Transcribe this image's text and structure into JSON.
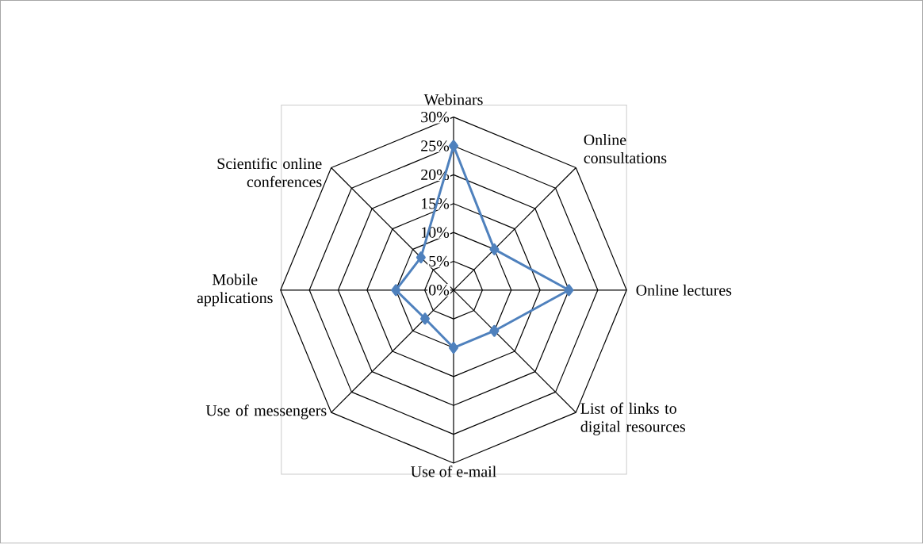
{
  "chart_data": {
    "type": "radar",
    "categories": [
      "Webinars",
      "Online consultations",
      "Online lectures",
      "List of links to digital resources",
      "Use of e-mail",
      "Use of messengers",
      "Mobile applications",
      "Scientific online conferences"
    ],
    "series": [
      {
        "color": "#4f81bd",
        "values": [
          25,
          10,
          20,
          10,
          10,
          7,
          10,
          8
        ]
      }
    ],
    "ylim": [
      0,
      30
    ],
    "yticks": [
      {
        "value": 0,
        "label": "0%"
      },
      {
        "value": 5,
        "label": "5%"
      },
      {
        "value": 10,
        "label": "10%"
      },
      {
        "value": 15,
        "label": "15%"
      },
      {
        "value": 20,
        "label": "20%"
      },
      {
        "value": 25,
        "label": "25%"
      },
      {
        "value": 30,
        "label": "30%"
      }
    ],
    "grid": true,
    "marker": "diamond",
    "line_style": "solid"
  }
}
